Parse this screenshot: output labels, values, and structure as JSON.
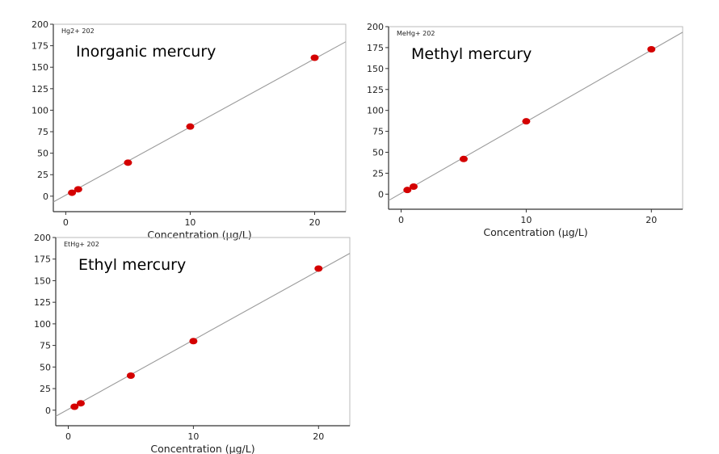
{
  "colors": {
    "point": "#d40000",
    "line": "#9a9a9a",
    "axis": "#333333",
    "frame": "#bbbbbb"
  },
  "chart_data": [
    {
      "type": "scatter",
      "trace_label": "Hg2+ 202",
      "title": "Inorganic mercury",
      "xlabel": "Concentration (µg/L)",
      "ylabel": "",
      "xlim": [
        -1,
        22.5
      ],
      "ylim": [
        -18,
        200
      ],
      "x_ticks": [
        0,
        10,
        20
      ],
      "y_ticks": [
        0,
        25,
        50,
        75,
        100,
        125,
        150,
        175,
        200
      ],
      "grid": false,
      "points": {
        "x": [
          0.5,
          1,
          5,
          10,
          20
        ],
        "y": [
          4,
          8,
          39,
          81,
          161
        ]
      },
      "fit": {
        "slope": 7.93,
        "intercept": 1.2
      }
    },
    {
      "type": "scatter",
      "trace_label": "MeHg+ 202",
      "title": "Methyl mercury",
      "xlabel": "Concentration (µg/L)",
      "ylabel": "",
      "xlim": [
        -1,
        22.5
      ],
      "ylim": [
        -18,
        200
      ],
      "x_ticks": [
        0,
        10,
        20
      ],
      "y_ticks": [
        0,
        25,
        50,
        75,
        100,
        125,
        150,
        175,
        200
      ],
      "grid": false,
      "points": {
        "x": [
          0.5,
          1,
          5,
          10,
          20
        ],
        "y": [
          5,
          9,
          42,
          87,
          173
        ]
      },
      "fit": {
        "slope": 8.55,
        "intercept": 1.0
      }
    },
    {
      "type": "scatter",
      "trace_label": "EtHg+ 202",
      "title": "Ethyl mercury",
      "xlabel": "Concentration (µg/L)",
      "ylabel": "",
      "xlim": [
        -1,
        22.5
      ],
      "ylim": [
        -18,
        200
      ],
      "x_ticks": [
        0,
        10,
        20
      ],
      "y_ticks": [
        0,
        25,
        50,
        75,
        100,
        125,
        150,
        175,
        200
      ],
      "grid": false,
      "points": {
        "x": [
          0.5,
          1,
          5,
          10,
          20
        ],
        "y": [
          4,
          8,
          40,
          80,
          164
        ]
      },
      "fit": {
        "slope": 8.03,
        "intercept": 1.0
      }
    }
  ]
}
